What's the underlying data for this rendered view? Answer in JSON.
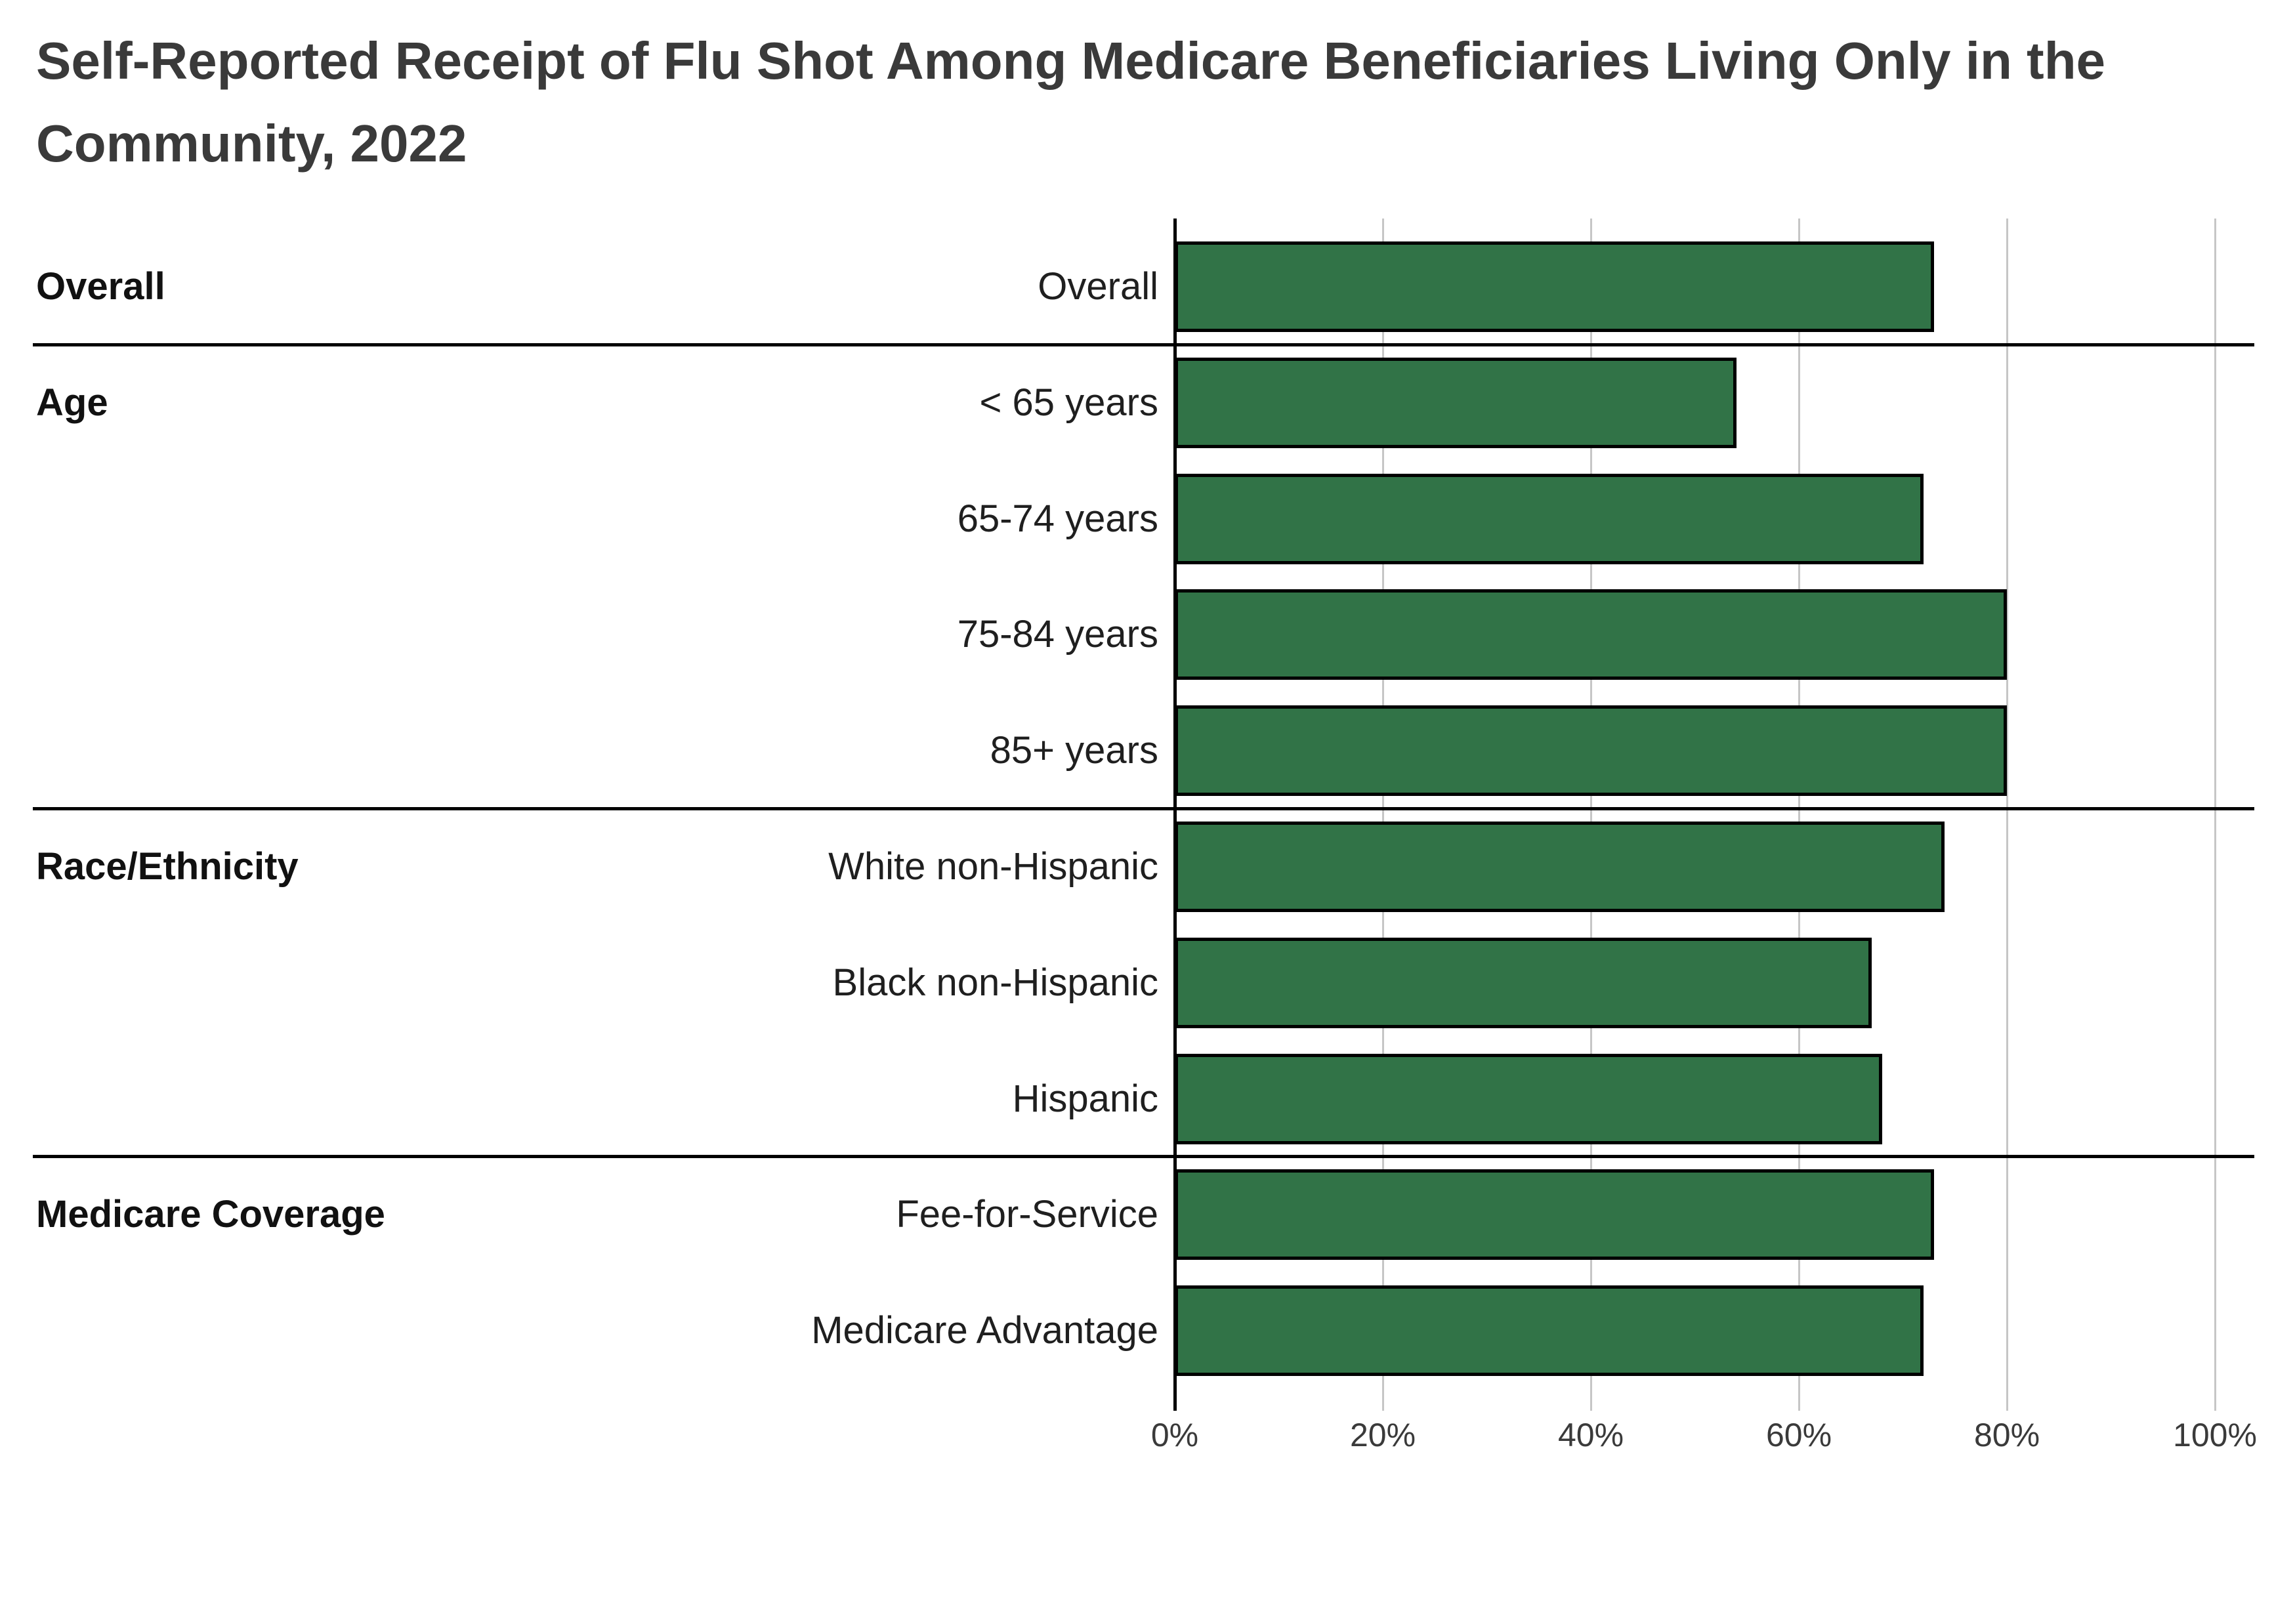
{
  "title_line1": "Self-Reported Receipt of Flu Shot Among Medicare Beneficiaries Living Only in the",
  "title_line2": "Community, 2022",
  "colors": {
    "bar_fill": "#317347",
    "bar_stroke": "#000000",
    "gridline": "#c6c6c6",
    "zero_axis": "#000000",
    "divider": "#000000",
    "title_text": "#3a3a3a",
    "label_text": "#1f1f1f",
    "tick_text": "#3a3a3a"
  },
  "chart_data": {
    "type": "bar",
    "orientation": "horizontal",
    "title": "Self-Reported Receipt of Flu Shot Among Medicare Beneficiaries Living Only in the Community, 2022",
    "xlabel": "",
    "ylabel": "",
    "unit": "%",
    "xlim": [
      0,
      100
    ],
    "grid": "vertical",
    "legend": "none",
    "x_ticks": [
      {
        "label": "0%",
        "value": 0
      },
      {
        "label": "20%",
        "value": 20
      },
      {
        "label": "40%",
        "value": 40
      },
      {
        "label": "60%",
        "value": 60
      },
      {
        "label": "80%",
        "value": 80
      },
      {
        "label": "100%",
        "value": 100
      }
    ],
    "groups": [
      {
        "group": "Overall",
        "bars": [
          {
            "label": "Overall",
            "value": 73
          }
        ]
      },
      {
        "group": "Age",
        "bars": [
          {
            "label": "< 65 years",
            "value": 54
          },
          {
            "label": "65-74 years",
            "value": 72
          },
          {
            "label": "75-84 years",
            "value": 80
          },
          {
            "label": "85+ years",
            "value": 80
          }
        ]
      },
      {
        "group": "Race/Ethnicity",
        "bars": [
          {
            "label": "White non-Hispanic",
            "value": 74
          },
          {
            "label": "Black non-Hispanic",
            "value": 67
          },
          {
            "label": "Hispanic",
            "value": 68
          }
        ]
      },
      {
        "group": "Medicare Coverage",
        "bars": [
          {
            "label": "Fee-for-Service",
            "value": 73
          },
          {
            "label": "Medicare Advantage",
            "value": 72
          }
        ]
      }
    ]
  }
}
